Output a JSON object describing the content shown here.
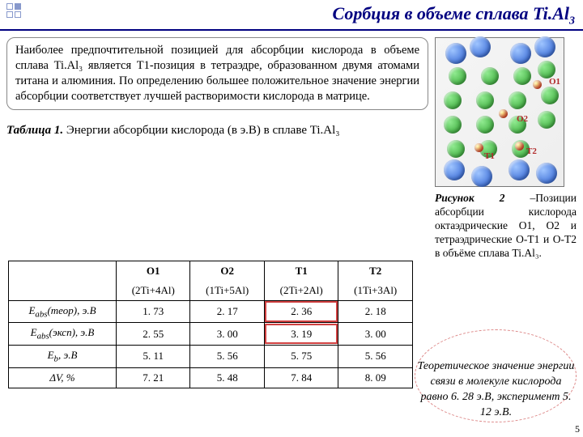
{
  "title_main": "Сорбция в объеме сплава Ti.Al",
  "title_sub": "3",
  "paragraph": "Наиболее предпочтительной позицией для абсорбции кислорода в объеме сплава Ti.Al₃ является T1-позиция в тетраэдре, образованном двумя атомами титана и алюминия. По определению большее положительное значение энергии абсорбции соответствует лучшей растворимости кислорода в матрице.",
  "table_caption_bold": "Таблица 1.",
  "table_caption_rest": " Энергии абсорбции кислорода (в э.В) в сплаве Ti.Al₃",
  "fig_caption_bold": "Рисунок 2",
  "fig_caption_rest": " –Позиции абсорбции кислорода октаэдрические O1, O2 и тетраэдрические O-T1 и O-T2 в объёме сплава Ti.Al₃.",
  "side_note": "Теоретическое значение энергии связи в молекуле кислорода равно 6. 28 э.В, эксперимент 5. 12 э.В.",
  "table": {
    "cols": [
      "",
      "O1",
      "O2",
      "T1",
      "T2"
    ],
    "sub": [
      "",
      "(2Ti+4Al)",
      "(1Ti+5Al)",
      "(2Ti+2Al)",
      "(1Ti+3Al)"
    ],
    "rows": [
      {
        "h": "E_{abs}(теор), э.В",
        "c": [
          "1. 73",
          "2. 17",
          "2. 36",
          "2. 18"
        ],
        "hl": 2
      },
      {
        "h": "E_{abs}(эксп), э.В",
        "c": [
          "2. 55",
          "3. 00",
          "3. 19",
          "3. 00"
        ],
        "hl": 2
      },
      {
        "h": "E_{b}, э.В",
        "c": [
          "5. 11",
          "5. 56",
          "5. 75",
          "5. 56"
        ],
        "hl": -1
      },
      {
        "h": "ΔV, %",
        "c": [
          "7. 21",
          "5. 48",
          "7. 84",
          "8. 09"
        ],
        "hl": -1
      }
    ]
  },
  "labels": {
    "o1": "O1",
    "o2": "O2",
    "t1": "T1",
    "t2": "T2"
  },
  "page_num": "5"
}
